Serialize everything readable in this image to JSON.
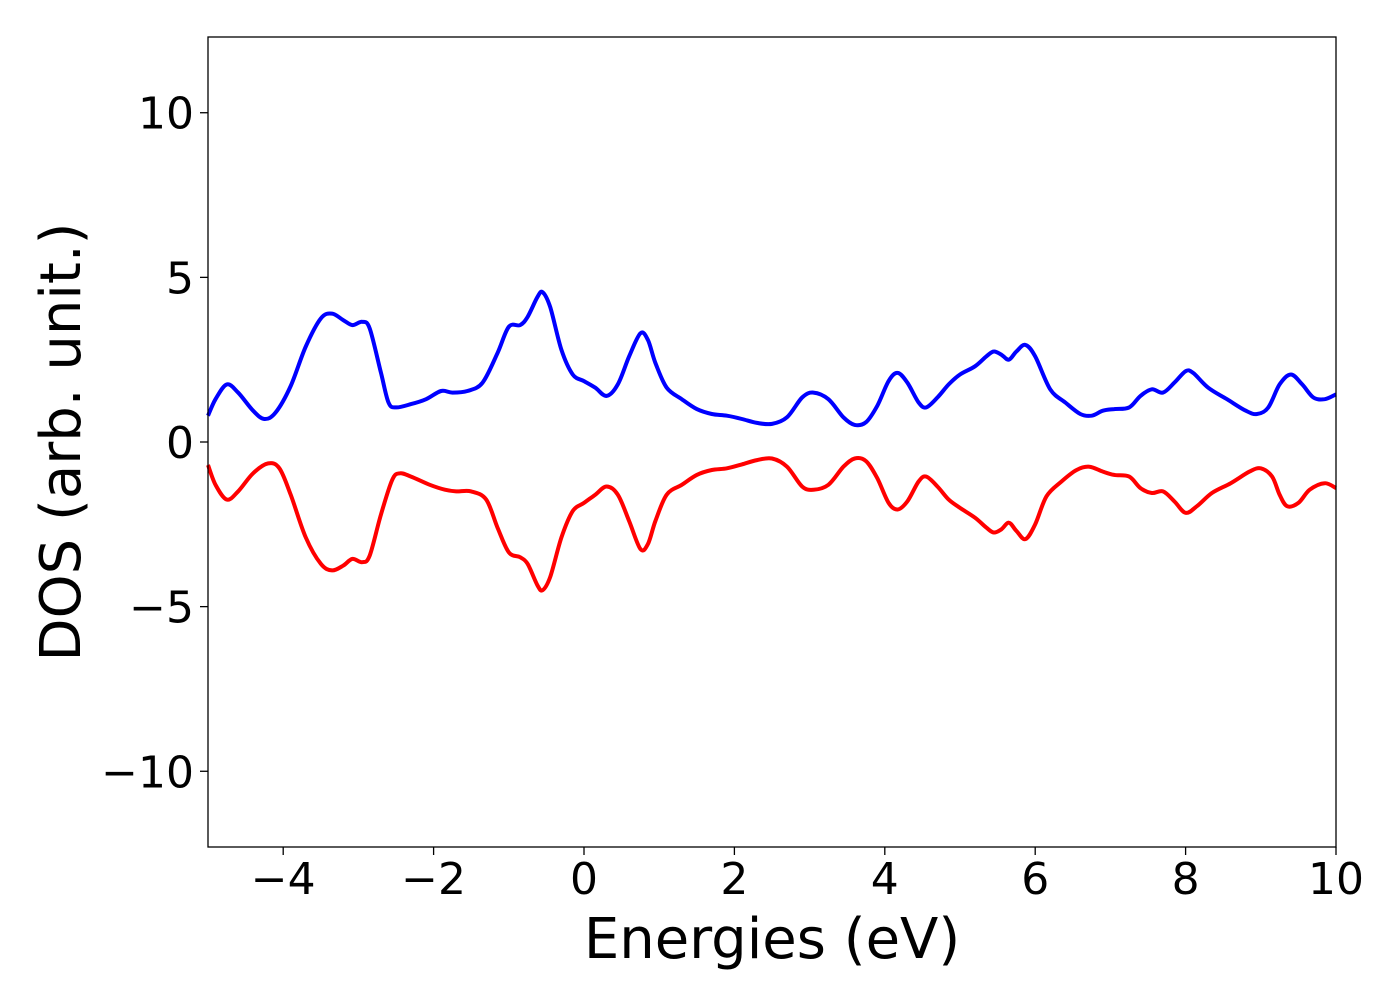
{
  "chart_data": {
    "type": "line",
    "title": "",
    "xlabel": "Energies (eV)",
    "ylabel": "DOS (arb. unit.)",
    "xlim": [
      -5,
      10
    ],
    "ylim": [
      -12.3,
      12.3
    ],
    "xticks": [
      -4,
      -2,
      0,
      2,
      4,
      6,
      8,
      10
    ],
    "xtick_labels": [
      "−4",
      "−2",
      "0",
      "2",
      "4",
      "6",
      "8",
      "10"
    ],
    "yticks": [
      10,
      5,
      0,
      -5,
      -10
    ],
    "ytick_labels": [
      "10",
      "5",
      "0",
      "−5",
      "−10"
    ],
    "grid": false,
    "legend": "none",
    "series": [
      {
        "color": "#0000ff",
        "points": [
          [
            -5.0,
            0.8
          ],
          [
            -4.9,
            1.3
          ],
          [
            -4.75,
            1.75
          ],
          [
            -4.6,
            1.5
          ],
          [
            -4.4,
            0.95
          ],
          [
            -4.25,
            0.7
          ],
          [
            -4.1,
            0.9
          ],
          [
            -3.9,
            1.7
          ],
          [
            -3.7,
            2.9
          ],
          [
            -3.5,
            3.75
          ],
          [
            -3.35,
            3.9
          ],
          [
            -3.2,
            3.7
          ],
          [
            -3.08,
            3.55
          ],
          [
            -2.95,
            3.65
          ],
          [
            -2.85,
            3.45
          ],
          [
            -2.7,
            2.1
          ],
          [
            -2.6,
            1.2
          ],
          [
            -2.5,
            1.05
          ],
          [
            -2.3,
            1.15
          ],
          [
            -2.1,
            1.3
          ],
          [
            -1.9,
            1.55
          ],
          [
            -1.75,
            1.5
          ],
          [
            -1.55,
            1.55
          ],
          [
            -1.35,
            1.8
          ],
          [
            -1.15,
            2.7
          ],
          [
            -1.0,
            3.5
          ],
          [
            -0.85,
            3.55
          ],
          [
            -0.75,
            3.8
          ],
          [
            -0.62,
            4.4
          ],
          [
            -0.55,
            4.55
          ],
          [
            -0.45,
            4.1
          ],
          [
            -0.3,
            2.8
          ],
          [
            -0.15,
            2.05
          ],
          [
            0.0,
            1.85
          ],
          [
            0.15,
            1.65
          ],
          [
            0.3,
            1.4
          ],
          [
            0.45,
            1.75
          ],
          [
            0.6,
            2.6
          ],
          [
            0.75,
            3.3
          ],
          [
            0.85,
            3.1
          ],
          [
            0.95,
            2.4
          ],
          [
            1.1,
            1.65
          ],
          [
            1.3,
            1.3
          ],
          [
            1.5,
            1.0
          ],
          [
            1.7,
            0.85
          ],
          [
            1.9,
            0.8
          ],
          [
            2.1,
            0.7
          ],
          [
            2.3,
            0.58
          ],
          [
            2.5,
            0.55
          ],
          [
            2.7,
            0.75
          ],
          [
            2.9,
            1.35
          ],
          [
            3.05,
            1.5
          ],
          [
            3.25,
            1.3
          ],
          [
            3.45,
            0.75
          ],
          [
            3.6,
            0.52
          ],
          [
            3.75,
            0.6
          ],
          [
            3.9,
            1.1
          ],
          [
            4.05,
            1.85
          ],
          [
            4.17,
            2.1
          ],
          [
            4.3,
            1.8
          ],
          [
            4.45,
            1.2
          ],
          [
            4.55,
            1.05
          ],
          [
            4.7,
            1.35
          ],
          [
            4.85,
            1.75
          ],
          [
            5.0,
            2.05
          ],
          [
            5.2,
            2.3
          ],
          [
            5.35,
            2.6
          ],
          [
            5.45,
            2.75
          ],
          [
            5.55,
            2.65
          ],
          [
            5.65,
            2.5
          ],
          [
            5.75,
            2.75
          ],
          [
            5.87,
            2.95
          ],
          [
            6.0,
            2.6
          ],
          [
            6.2,
            1.6
          ],
          [
            6.4,
            1.2
          ],
          [
            6.6,
            0.85
          ],
          [
            6.75,
            0.8
          ],
          [
            6.9,
            0.95
          ],
          [
            7.05,
            1.0
          ],
          [
            7.25,
            1.05
          ],
          [
            7.4,
            1.4
          ],
          [
            7.55,
            1.6
          ],
          [
            7.7,
            1.5
          ],
          [
            7.85,
            1.8
          ],
          [
            8.0,
            2.15
          ],
          [
            8.1,
            2.1
          ],
          [
            8.3,
            1.65
          ],
          [
            8.55,
            1.3
          ],
          [
            8.8,
            0.95
          ],
          [
            8.95,
            0.85
          ],
          [
            9.1,
            1.05
          ],
          [
            9.25,
            1.75
          ],
          [
            9.4,
            2.05
          ],
          [
            9.55,
            1.75
          ],
          [
            9.7,
            1.35
          ],
          [
            9.85,
            1.3
          ],
          [
            10.0,
            1.45
          ]
        ]
      },
      {
        "color": "#ff0000",
        "points": [
          [
            -5.0,
            -0.7
          ],
          [
            -4.9,
            -1.3
          ],
          [
            -4.75,
            -1.75
          ],
          [
            -4.6,
            -1.5
          ],
          [
            -4.4,
            -0.95
          ],
          [
            -4.2,
            -0.65
          ],
          [
            -4.05,
            -0.8
          ],
          [
            -3.9,
            -1.6
          ],
          [
            -3.7,
            -2.9
          ],
          [
            -3.5,
            -3.7
          ],
          [
            -3.35,
            -3.9
          ],
          [
            -3.2,
            -3.75
          ],
          [
            -3.08,
            -3.55
          ],
          [
            -2.95,
            -3.65
          ],
          [
            -2.85,
            -3.45
          ],
          [
            -2.7,
            -2.2
          ],
          [
            -2.55,
            -1.15
          ],
          [
            -2.45,
            -0.95
          ],
          [
            -2.3,
            -1.05
          ],
          [
            -2.05,
            -1.3
          ],
          [
            -1.85,
            -1.45
          ],
          [
            -1.7,
            -1.5
          ],
          [
            -1.5,
            -1.5
          ],
          [
            -1.3,
            -1.75
          ],
          [
            -1.15,
            -2.6
          ],
          [
            -1.0,
            -3.35
          ],
          [
            -0.85,
            -3.5
          ],
          [
            -0.75,
            -3.7
          ],
          [
            -0.62,
            -4.35
          ],
          [
            -0.55,
            -4.5
          ],
          [
            -0.45,
            -4.1
          ],
          [
            -0.3,
            -2.9
          ],
          [
            -0.15,
            -2.1
          ],
          [
            0.0,
            -1.85
          ],
          [
            0.15,
            -1.6
          ],
          [
            0.3,
            -1.35
          ],
          [
            0.45,
            -1.6
          ],
          [
            0.6,
            -2.4
          ],
          [
            0.75,
            -3.25
          ],
          [
            0.85,
            -3.1
          ],
          [
            0.95,
            -2.4
          ],
          [
            1.1,
            -1.6
          ],
          [
            1.3,
            -1.3
          ],
          [
            1.5,
            -1.0
          ],
          [
            1.7,
            -0.85
          ],
          [
            1.9,
            -0.8
          ],
          [
            2.1,
            -0.68
          ],
          [
            2.3,
            -0.55
          ],
          [
            2.5,
            -0.5
          ],
          [
            2.7,
            -0.75
          ],
          [
            2.9,
            -1.35
          ],
          [
            3.05,
            -1.45
          ],
          [
            3.25,
            -1.3
          ],
          [
            3.45,
            -0.75
          ],
          [
            3.6,
            -0.5
          ],
          [
            3.75,
            -0.58
          ],
          [
            3.9,
            -1.1
          ],
          [
            4.05,
            -1.85
          ],
          [
            4.17,
            -2.05
          ],
          [
            4.3,
            -1.8
          ],
          [
            4.45,
            -1.2
          ],
          [
            4.55,
            -1.05
          ],
          [
            4.7,
            -1.35
          ],
          [
            4.85,
            -1.75
          ],
          [
            5.0,
            -2.0
          ],
          [
            5.2,
            -2.3
          ],
          [
            5.35,
            -2.6
          ],
          [
            5.45,
            -2.75
          ],
          [
            5.55,
            -2.65
          ],
          [
            5.65,
            -2.45
          ],
          [
            5.75,
            -2.7
          ],
          [
            5.87,
            -2.95
          ],
          [
            6.0,
            -2.5
          ],
          [
            6.15,
            -1.65
          ],
          [
            6.35,
            -1.2
          ],
          [
            6.55,
            -0.85
          ],
          [
            6.72,
            -0.75
          ],
          [
            6.9,
            -0.9
          ],
          [
            7.05,
            -1.0
          ],
          [
            7.25,
            -1.05
          ],
          [
            7.4,
            -1.4
          ],
          [
            7.55,
            -1.55
          ],
          [
            7.7,
            -1.5
          ],
          [
            7.85,
            -1.8
          ],
          [
            8.0,
            -2.15
          ],
          [
            8.15,
            -1.95
          ],
          [
            8.35,
            -1.55
          ],
          [
            8.6,
            -1.25
          ],
          [
            8.85,
            -0.9
          ],
          [
            9.0,
            -0.8
          ],
          [
            9.15,
            -1.05
          ],
          [
            9.25,
            -1.6
          ],
          [
            9.35,
            -1.95
          ],
          [
            9.5,
            -1.85
          ],
          [
            9.65,
            -1.45
          ],
          [
            9.85,
            -1.25
          ],
          [
            10.0,
            -1.4
          ]
        ]
      }
    ]
  }
}
